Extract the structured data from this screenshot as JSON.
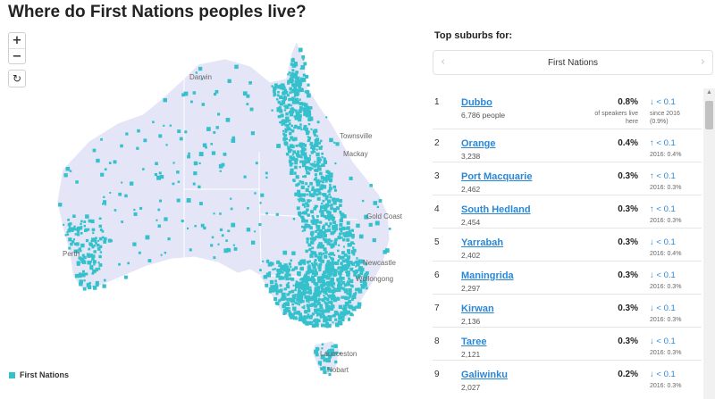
{
  "page": {
    "title": "Where do First Nations peoples live?"
  },
  "map_controls": {
    "zoom_in": "+",
    "zoom_out": "−",
    "reset": "↻"
  },
  "map": {
    "land_color": "#e4e6f7",
    "dot_color": "#35c1cc",
    "place_labels": {
      "darwin": "Darwin",
      "townsville": "Townsville",
      "mackay": "Mackay",
      "gold_coast": "Gold Coast",
      "perth": "Perth",
      "newcastle": "Newcastle",
      "wollongong": "Wollongong",
      "launceston": "Launceston",
      "hobart": "Hobart"
    }
  },
  "legend": {
    "label": "First Nations"
  },
  "panel": {
    "heading": "Top suburbs for:",
    "selector_value": "First Nations",
    "prev_arrow": "‹",
    "next_arrow": "›"
  },
  "suburbs": [
    {
      "rank": "1",
      "name": "Dubbo",
      "count": "6,786 people",
      "pct": "0.8%",
      "pct_note": "of speakers live here",
      "change": "↓ < 0.1",
      "since": "since 2016 (0.9%)"
    },
    {
      "rank": "2",
      "name": "Orange",
      "count": "3,238",
      "pct": "0.4%",
      "pct_note": "",
      "change": "↑ < 0.1",
      "since": "2016: 0.4%"
    },
    {
      "rank": "3",
      "name": "Port Macquarie",
      "count": "2,462",
      "pct": "0.3%",
      "pct_note": "",
      "change": "↑ < 0.1",
      "since": "2016: 0.3%"
    },
    {
      "rank": "4",
      "name": "South Hedland",
      "count": "2,454",
      "pct": "0.3%",
      "pct_note": "",
      "change": "↑ < 0.1",
      "since": "2016: 0.3%"
    },
    {
      "rank": "5",
      "name": "Yarrabah",
      "count": "2,402",
      "pct": "0.3%",
      "pct_note": "",
      "change": "↓ < 0.1",
      "since": "2016: 0.4%"
    },
    {
      "rank": "6",
      "name": "Maningrida",
      "count": "2,297",
      "pct": "0.3%",
      "pct_note": "",
      "change": "↓ < 0.1",
      "since": "2016: 0.3%"
    },
    {
      "rank": "7",
      "name": "Kirwan",
      "count": "2,136",
      "pct": "0.3%",
      "pct_note": "",
      "change": "↓ < 0.1",
      "since": "2016: 0.3%"
    },
    {
      "rank": "8",
      "name": "Taree",
      "count": "2,121",
      "pct": "0.3%",
      "pct_note": "",
      "change": "↓ < 0.1",
      "since": "2016: 0.3%"
    },
    {
      "rank": "9",
      "name": "Galiwinku",
      "count": "2,027",
      "pct": "0.2%",
      "pct_note": "",
      "change": "↓ < 0.1",
      "since": "2016: 0.3%"
    }
  ]
}
